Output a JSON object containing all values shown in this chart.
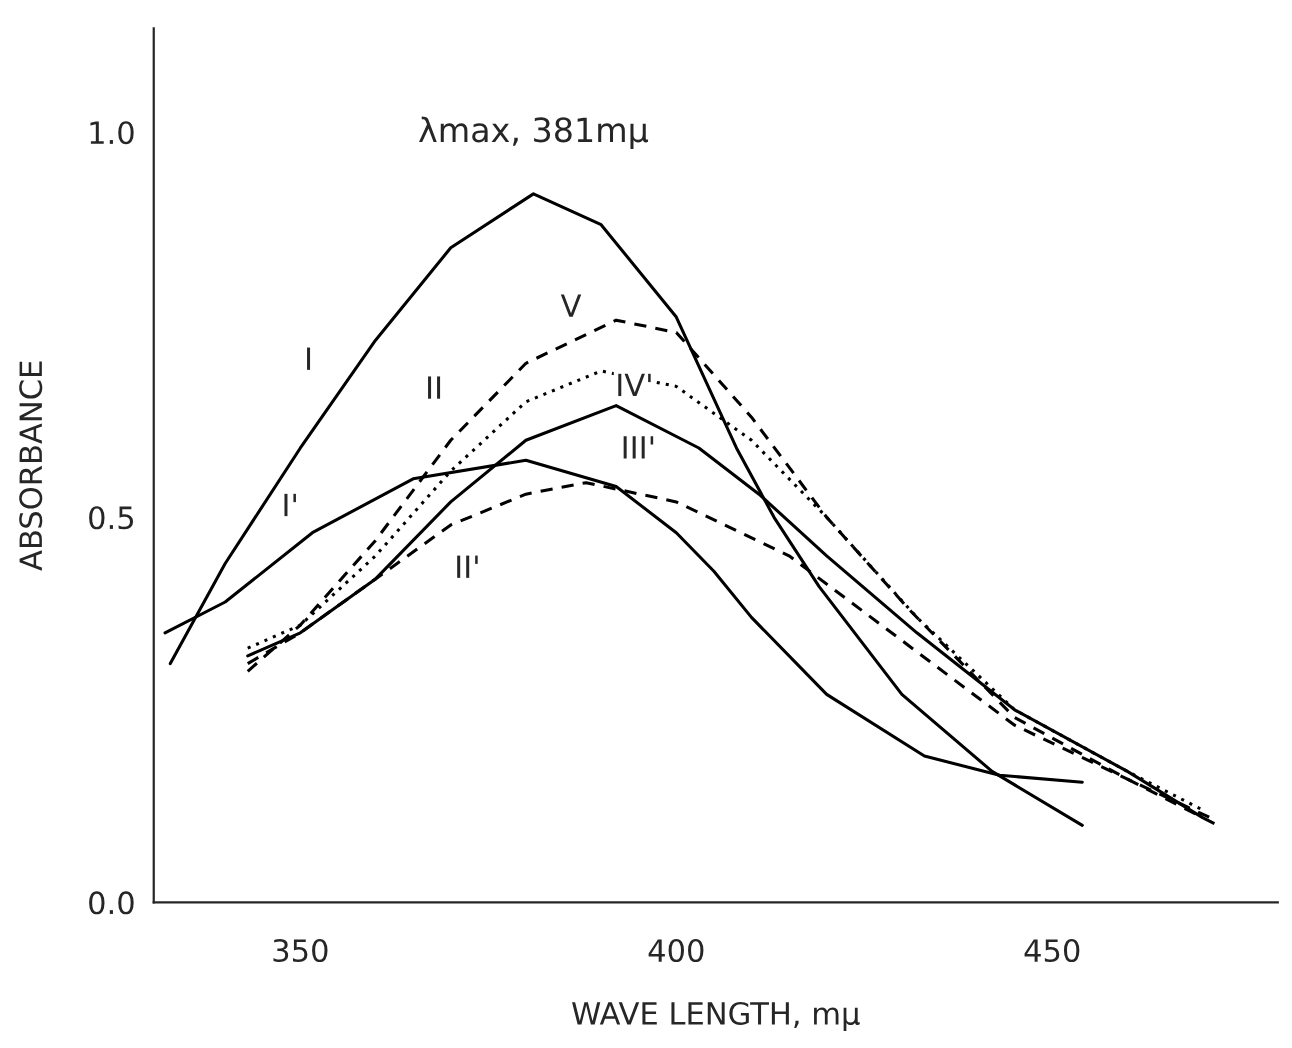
{
  "chart_data": {
    "type": "line",
    "xlabel": "WAVE LENGTH, mμ",
    "ylabel": "ABSORBANCE",
    "xlim": [
      330.5,
      480
    ],
    "ylim": [
      0,
      1.135
    ],
    "xticks": [
      350,
      400,
      450
    ],
    "yticks": [
      {
        "value": 0,
        "label": "0.0"
      },
      {
        "value": 0.5,
        "label": "0.5"
      },
      {
        "value": 1.0,
        "label": "1.0"
      }
    ],
    "grid": false,
    "legend": false,
    "marker": "none",
    "series": [
      {
        "color": "#000000",
        "line_style": "solid",
        "x": [
          332.7,
          340,
          350,
          360,
          370,
          381,
          390,
          400,
          408,
          413,
          419,
          430,
          442,
          454
        ],
        "values": [
          0.31,
          0.44,
          0.59,
          0.73,
          0.85,
          0.92,
          0.88,
          0.76,
          0.59,
          0.5,
          0.41,
          0.27,
          0.17,
          0.1
        ]
      },
      {
        "color": "#000000",
        "line_style": "solid",
        "x": [
          332,
          340,
          351.6,
          365,
          380,
          392,
          400,
          405,
          410,
          420,
          433,
          443,
          454
        ],
        "values": [
          0.35,
          0.39,
          0.48,
          0.55,
          0.574,
          0.54,
          0.48,
          0.43,
          0.37,
          0.27,
          0.19,
          0.165,
          0.156
        ]
      },
      {
        "color": "#000000",
        "line_style": "dashed",
        "x": [
          343,
          350,
          360,
          370,
          380,
          392,
          400,
          410,
          420,
          431,
          445,
          460,
          472
        ],
        "values": [
          0.3,
          0.36,
          0.47,
          0.6,
          0.7,
          0.756,
          0.74,
          0.63,
          0.5,
          0.38,
          0.24,
          0.16,
          0.1
        ]
      },
      {
        "color": "#000000",
        "line_style": "dashed",
        "x": [
          343,
          350,
          360,
          370,
          380,
          388,
          400,
          415,
          430,
          445,
          460,
          471
        ],
        "values": [
          0.31,
          0.35,
          0.42,
          0.49,
          0.53,
          0.545,
          0.52,
          0.45,
          0.34,
          0.23,
          0.16,
          0.11
        ]
      },
      {
        "color": "#000000",
        "line_style": "dotted",
        "x": [
          343,
          350,
          360,
          370,
          380,
          390,
          400,
          410,
          420,
          432,
          445,
          460,
          470
        ],
        "values": [
          0.33,
          0.36,
          0.45,
          0.56,
          0.65,
          0.69,
          0.67,
          0.6,
          0.5,
          0.37,
          0.25,
          0.17,
          0.12
        ]
      },
      {
        "color": "#000000",
        "line_style": "solid",
        "x": [
          343,
          350,
          360,
          370,
          380,
          392,
          403,
          411,
          420,
          432,
          445,
          460,
          470
        ],
        "values": [
          0.32,
          0.35,
          0.42,
          0.52,
          0.6,
          0.645,
          0.59,
          0.53,
          0.45,
          0.35,
          0.25,
          0.17,
          0.11
        ]
      }
    ],
    "annotations": [
      {
        "text": "λmax, 381mμ",
        "x": 381,
        "y": 0.92
      },
      {
        "text": "I",
        "x": 357,
        "y": 0.688
      },
      {
        "text": "I'",
        "x": 351.6,
        "y": 0.48
      },
      {
        "text": "II",
        "x": 370,
        "y": 0.6
      },
      {
        "text": "V",
        "x": 386,
        "y": 0.728
      },
      {
        "text": "IV'",
        "x": 390,
        "y": 0.69
      },
      {
        "text": "III'",
        "x": 392,
        "y": 0.645
      },
      {
        "text": "II'",
        "x": 370,
        "y": 0.49
      }
    ]
  }
}
